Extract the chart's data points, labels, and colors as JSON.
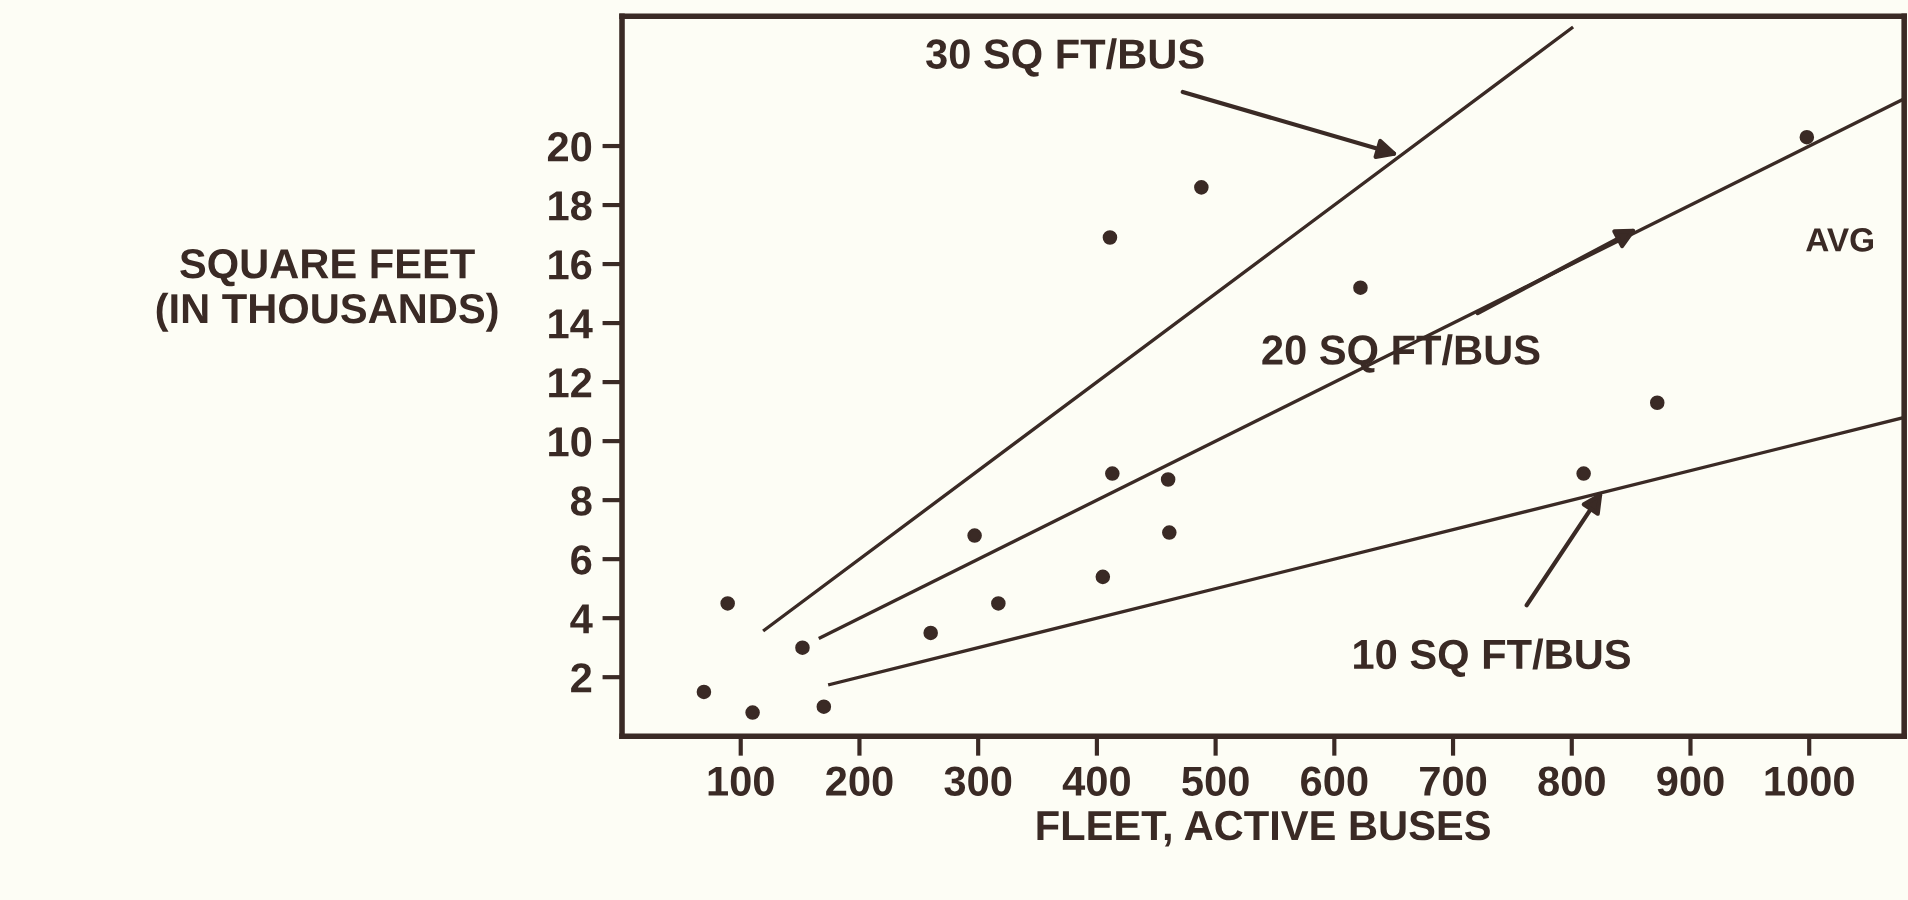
{
  "chart_data": {
    "type": "scatter",
    "xlabel": "FLEET, ACTIVE BUSES",
    "ylabel": "SQUARE FEET\n(IN THOUSANDS)",
    "xlim": [
      0,
      1080
    ],
    "ylim": [
      0,
      24.4
    ],
    "xticks": [
      100,
      200,
      300,
      400,
      500,
      600,
      700,
      800,
      900,
      1000
    ],
    "yticks": [
      2,
      4,
      6,
      8,
      10,
      12,
      14,
      16,
      18,
      20
    ],
    "grid": false,
    "marker": "circle",
    "series": [
      {
        "color": "#3a2a25",
        "x": [
          69,
          89,
          110,
          152,
          170,
          260,
          297,
          317,
          405,
          411,
          413,
          460,
          461,
          488,
          622,
          810,
          872,
          998
        ],
        "values": [
          1.5,
          4.5,
          0.8,
          3.0,
          1.0,
          3.5,
          6.8,
          4.5,
          5.4,
          16.9,
          8.9,
          8.7,
          6.9,
          18.6,
          15.2,
          8.9,
          11.3,
          20.3
        ]
      },
      {
        "type": "line",
        "color": "#3a2a25",
        "line_style": "solid",
        "marker": "none",
        "x": [
          120,
          800
        ],
        "values": [
          3.6,
          24
        ]
      },
      {
        "type": "line",
        "color": "#3a2a25",
        "line_style": "solid",
        "marker": "none",
        "x": [
          167,
          1080
        ],
        "values": [
          3.34,
          21.6
        ]
      },
      {
        "type": "line",
        "color": "#3a2a25",
        "line_style": "solid",
        "marker": "none",
        "x": [
          175,
          1080
        ],
        "values": [
          1.75,
          10.8
        ]
      }
    ],
    "annotations": [
      {
        "text": "30 SQ FT/BUS",
        "x": 654,
        "y": 19.7
      },
      {
        "text": "20 SQ FT/BUS",
        "x": 855,
        "y": 17.2
      },
      {
        "text": "10 SQ FT/BUS",
        "x": 826,
        "y": 8.3
      },
      {
        "text": "AVG",
        "x": 998,
        "y": 20.3
      }
    ]
  }
}
